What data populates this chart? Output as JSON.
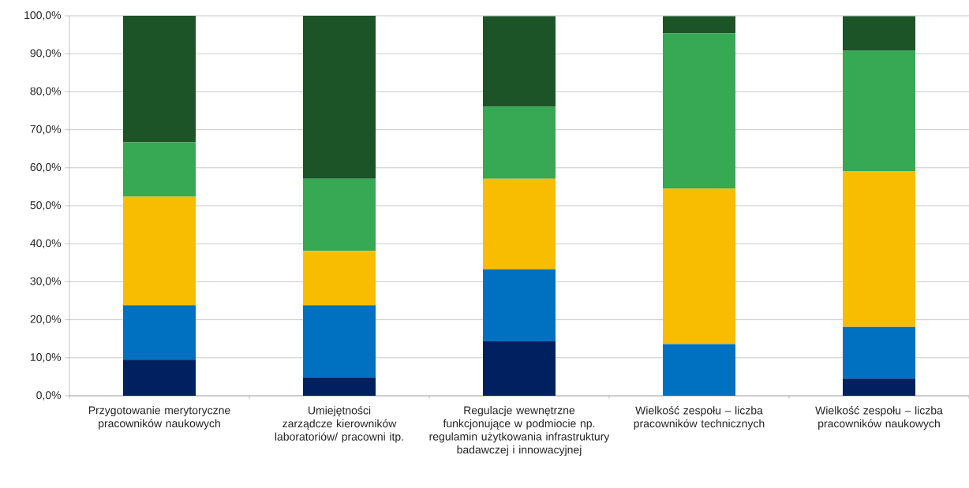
{
  "chart_data": {
    "type": "bar",
    "stacked": true,
    "grid": "y",
    "categories": [
      "Przygotowanie merytoryczne pracowników naukowych",
      "Umiejętności zarządcze kierowników laboratoriów/ pracowni itp.",
      "Regulacje wewnętrzne funkcjonujące w podmiocie np. regulamin użytkowania infrastruktury badawczej i innowacyjnej",
      "Wielkość zespołu – liczba pracowników technicznych",
      "Wielkość zespołu – liczba pracowników naukowych"
    ],
    "ylim": [
      0,
      100
    ],
    "yticks": [
      {
        "value": 0,
        "label": "0,0%"
      },
      {
        "value": 10,
        "label": "10,0%"
      },
      {
        "value": 20,
        "label": "20,0%"
      },
      {
        "value": 30,
        "label": "30,0%"
      },
      {
        "value": 40,
        "label": "40,0%"
      },
      {
        "value": 50,
        "label": "50,0%"
      },
      {
        "value": 60,
        "label": "60,0%"
      },
      {
        "value": 70,
        "label": "70,0%"
      },
      {
        "value": 80,
        "label": "80,0%"
      },
      {
        "value": 90,
        "label": "90,0%"
      },
      {
        "value": 100,
        "label": "100,0%"
      }
    ],
    "series": [
      {
        "color": "#002060",
        "values": [
          9.5,
          4.8,
          14.3,
          0,
          4.5
        ]
      },
      {
        "color": "#0070c0",
        "values": [
          14.3,
          19.0,
          19.0,
          13.6,
          13.6
        ]
      },
      {
        "color": "#f8bc00",
        "values": [
          28.6,
          14.3,
          23.8,
          40.9,
          40.9
        ]
      },
      {
        "color": "#37a853",
        "values": [
          14.3,
          19.0,
          19.0,
          40.9,
          31.8
        ]
      },
      {
        "color": "#1c5428",
        "values": [
          33.3,
          42.9,
          23.8,
          4.5,
          9.1
        ]
      }
    ]
  }
}
